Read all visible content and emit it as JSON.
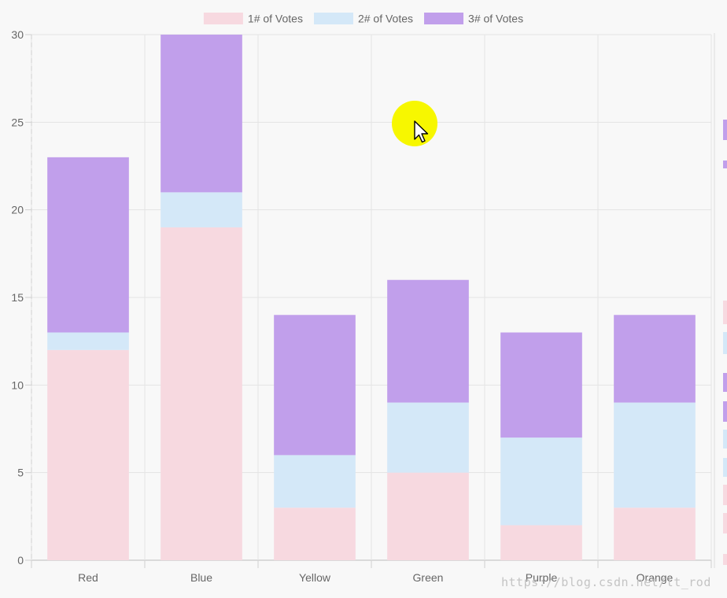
{
  "chart_data": {
    "type": "bar",
    "stacked": true,
    "categories": [
      "Red",
      "Blue",
      "Yellow",
      "Green",
      "Purple",
      "Orange"
    ],
    "series": [
      {
        "name": "1# of Votes",
        "values": [
          12,
          19,
          3,
          5,
          2,
          3
        ],
        "color": "#f7d9e0"
      },
      {
        "name": "2# of Votes",
        "values": [
          1,
          2,
          3,
          4,
          5,
          6
        ],
        "color": "#d4e8f8"
      },
      {
        "name": "3# of Votes",
        "values": [
          10,
          9,
          8,
          7,
          6,
          5
        ],
        "color": "#c19feb"
      }
    ],
    "ylim": [
      0,
      30
    ],
    "yticks": [
      0,
      5,
      10,
      15,
      20,
      25,
      30
    ],
    "ytick_labels": [
      "0",
      "5",
      "10",
      "15",
      "20",
      "25",
      "30"
    ],
    "title": "",
    "xlabel": "",
    "ylabel": "",
    "grid": true,
    "legend_position": "top"
  },
  "watermark": "https://blog.csdn.net/lt_rod",
  "cursor": {
    "icon": "pointer-arrow-icon",
    "highlight_color": "#f7f700"
  }
}
